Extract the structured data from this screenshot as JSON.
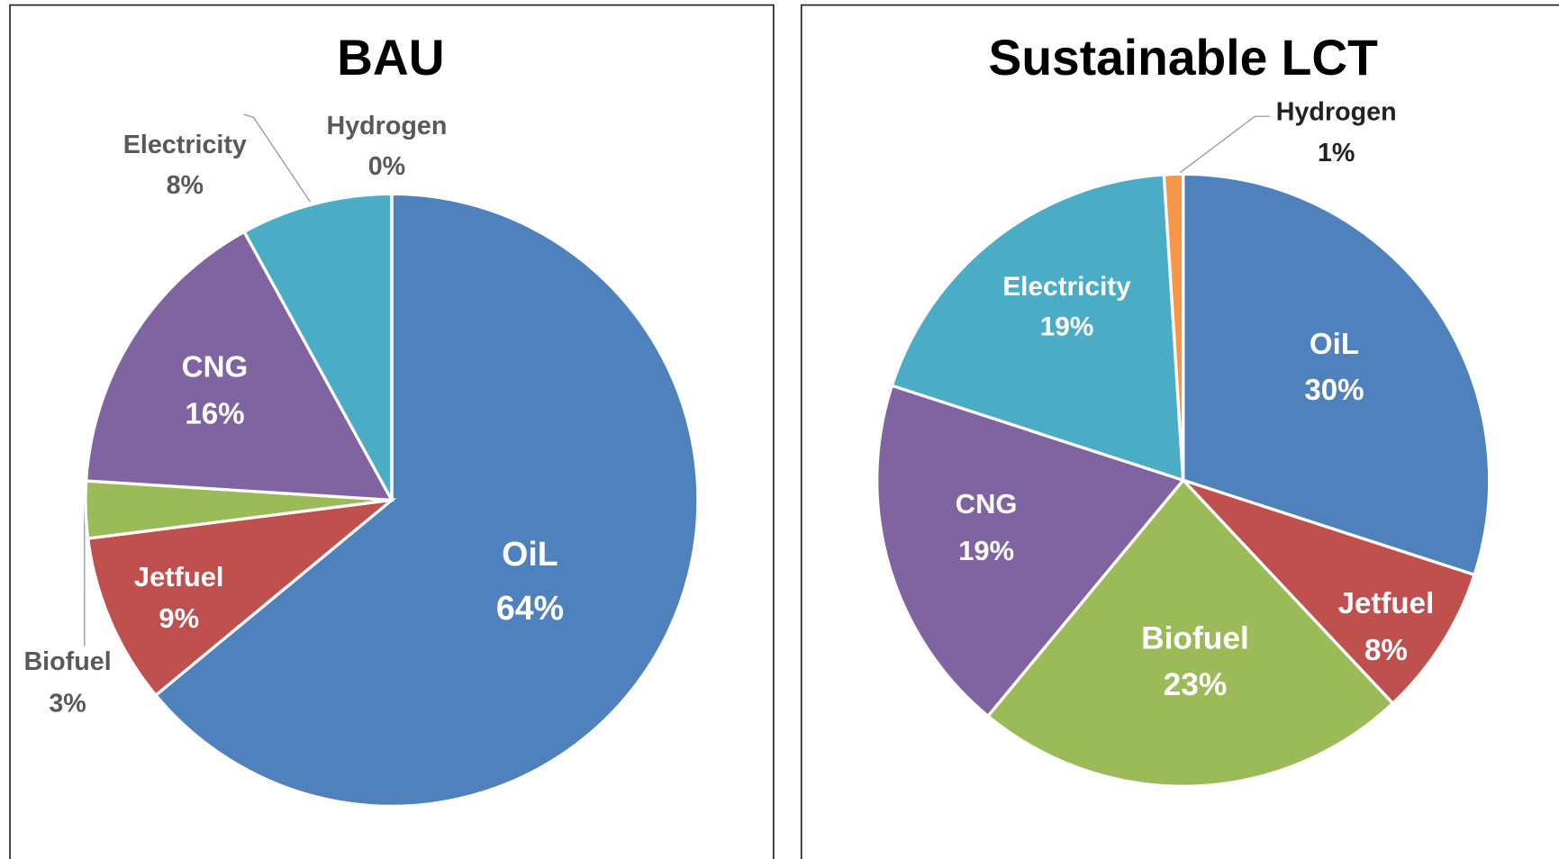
{
  "chart_data": [
    {
      "type": "pie",
      "title": "BAU",
      "categories": [
        "OiL",
        "Jetfuel",
        "Biofuel",
        "CNG",
        "Electricity",
        "Hydrogen"
      ],
      "values": [
        64,
        9,
        3,
        16,
        8,
        0
      ],
      "value_labels": [
        "64%",
        "9%",
        "3%",
        "16%",
        "8%",
        "0%"
      ],
      "colors": [
        "#4f81bd",
        "#c0504d",
        "#9bbb59",
        "#8064a2",
        "#4bacc6",
        "#f79646"
      ]
    },
    {
      "type": "pie",
      "title": "Sustainable LCT",
      "categories": [
        "OiL",
        "Jetfuel",
        "Biofuel",
        "CNG",
        "Electricity",
        "Hydrogen"
      ],
      "values": [
        30,
        8,
        23,
        19,
        19,
        1
      ],
      "value_labels": [
        "30%",
        "8%",
        "23%",
        "19%",
        "19%",
        "1%"
      ],
      "colors": [
        "#4f81bd",
        "#c0504d",
        "#9bbb59",
        "#8064a2",
        "#4bacc6",
        "#f79646"
      ]
    }
  ]
}
